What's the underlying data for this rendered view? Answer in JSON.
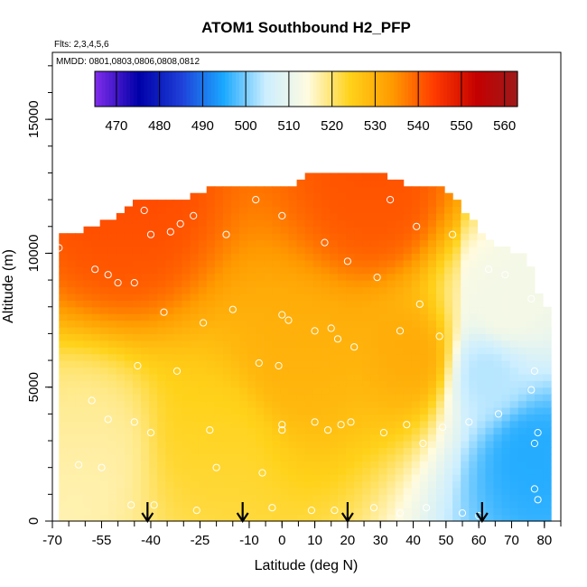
{
  "chart_data": {
    "type": "heatmap",
    "title": "ATOM1 Southbound H2_PFP",
    "flights_label": "Flts: 2,3,4,5,6",
    "dates_label": "MMDD: 0801,0803,0806,0808,0812",
    "xlabel": "Latitude (deg N)",
    "ylabel": "Altitude (m)",
    "xlim": [
      -70,
      85
    ],
    "ylim": [
      0,
      17500
    ],
    "x_ticks": [
      -70,
      -55,
      -40,
      -25,
      -10,
      0,
      10,
      20,
      30,
      40,
      50,
      60,
      70,
      80
    ],
    "y_ticks": [
      0,
      5000,
      10000,
      15000
    ],
    "colorbar": {
      "range": [
        465,
        563
      ],
      "ticks": [
        470,
        480,
        490,
        500,
        510,
        520,
        530,
        540,
        550,
        560
      ],
      "colors": [
        "#7b2be8",
        "#0000a8",
        "#1e3fd8",
        "#1aa8ff",
        "#cceeff",
        "#fffbe0",
        "#ffd21a",
        "#ff9a00",
        "#ff3a00",
        "#c40000",
        "#9c1c1c"
      ]
    },
    "arrows_latitude": [
      -41,
      -12,
      20,
      61
    ],
    "profile_top_altitude": [
      [
        -68,
        10500
      ],
      [
        -60,
        10800
      ],
      [
        -52,
        11200
      ],
      [
        -45,
        11800
      ],
      [
        -38,
        11800
      ],
      [
        -30,
        11800
      ],
      [
        -22,
        12300
      ],
      [
        -10,
        12300
      ],
      [
        0,
        12300
      ],
      [
        10,
        12900
      ],
      [
        20,
        12900
      ],
      [
        30,
        12900
      ],
      [
        40,
        12300
      ],
      [
        50,
        12300
      ],
      [
        55,
        11500
      ],
      [
        60,
        10800
      ],
      [
        65,
        10200
      ],
      [
        70,
        10000
      ],
      [
        75,
        9800
      ],
      [
        79,
        8000
      ]
    ],
    "values_grid_note": "approximate H2 mixing ratio field (ppb) by latitude/altitude",
    "field_features": [
      {
        "lat": 62,
        "alt": 5500,
        "value": 503
      },
      {
        "lat": 76,
        "alt": 2500,
        "value": 495
      },
      {
        "lat": 68,
        "alt": 8000,
        "value": 512
      },
      {
        "lat": -48,
        "alt": 11000,
        "value": 537
      },
      {
        "lat": 28,
        "alt": 11800,
        "value": 536
      },
      {
        "lat": 5,
        "alt": 6000,
        "value": 527
      },
      {
        "lat": -60,
        "alt": 3000,
        "value": 516
      },
      {
        "lat": 40,
        "alt": 6000,
        "value": 528
      },
      {
        "lat": -20,
        "alt": 3000,
        "value": 522
      }
    ],
    "sample_points": [
      [
        -68,
        10200
      ],
      [
        -57,
        9400
      ],
      [
        -53,
        9200
      ],
      [
        -50,
        8900
      ],
      [
        -45,
        8900
      ],
      [
        -42,
        11600
      ],
      [
        -40,
        10700
      ],
      [
        -34,
        10800
      ],
      [
        -31,
        11100
      ],
      [
        -27,
        11400
      ],
      [
        -17,
        10700
      ],
      [
        -8,
        12000
      ],
      [
        0,
        11400
      ],
      [
        13,
        10400
      ],
      [
        20,
        9700
      ],
      [
        29,
        9100
      ],
      [
        33,
        12000
      ],
      [
        41,
        11000
      ],
      [
        52,
        10700
      ],
      [
        63,
        9400
      ],
      [
        68,
        9200
      ],
      [
        76,
        8300
      ],
      [
        78,
        9700
      ],
      [
        -36,
        7800
      ],
      [
        -24,
        7400
      ],
      [
        -15,
        7900
      ],
      [
        0,
        7700
      ],
      [
        2,
        7500
      ],
      [
        10,
        7100
      ],
      [
        15,
        7200
      ],
      [
        17,
        6800
      ],
      [
        22,
        6500
      ],
      [
        36,
        7100
      ],
      [
        42,
        8100
      ],
      [
        48,
        6900
      ],
      [
        -44,
        5800
      ],
      [
        -32,
        5600
      ],
      [
        -7,
        5900
      ],
      [
        -1,
        5800
      ],
      [
        -58,
        4500
      ],
      [
        -53,
        3800
      ],
      [
        -45,
        3700
      ],
      [
        -40,
        3300
      ],
      [
        -22,
        3400
      ],
      [
        0,
        3600
      ],
      [
        0,
        3400
      ],
      [
        10,
        3700
      ],
      [
        14,
        3400
      ],
      [
        18,
        3600
      ],
      [
        21,
        3700
      ],
      [
        31,
        3300
      ],
      [
        38,
        3600
      ],
      [
        43,
        2900
      ],
      [
        49,
        3500
      ],
      [
        57,
        3700
      ],
      [
        66,
        4000
      ],
      [
        76,
        4900
      ],
      [
        78,
        3300
      ],
      [
        77,
        2900
      ],
      [
        -62,
        2100
      ],
      [
        -55,
        2000
      ],
      [
        -20,
        2000
      ],
      [
        -6,
        1800
      ],
      [
        -46,
        600
      ],
      [
        -39,
        600
      ],
      [
        -26,
        400
      ],
      [
        -3,
        500
      ],
      [
        9,
        400
      ],
      [
        16,
        400
      ],
      [
        28,
        500
      ],
      [
        36,
        300
      ],
      [
        44,
        500
      ],
      [
        55,
        300
      ],
      [
        60,
        200
      ],
      [
        77,
        1200
      ],
      [
        78,
        800
      ],
      [
        77,
        5600
      ]
    ]
  }
}
